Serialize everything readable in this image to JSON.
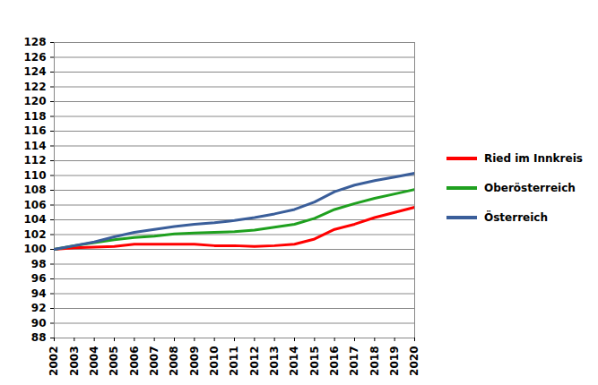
{
  "chart_data": {
    "type": "line",
    "x": [
      2002,
      2003,
      2004,
      2005,
      2006,
      2007,
      2008,
      2009,
      2010,
      2011,
      2012,
      2013,
      2014,
      2015,
      2016,
      2017,
      2018,
      2019,
      2020
    ],
    "series": [
      {
        "name": "Ried im Innkreis",
        "color": "#ff0000",
        "values": [
          100,
          100.2,
          100.3,
          100.4,
          100.7,
          100.7,
          100.7,
          100.7,
          100.5,
          100.5,
          100.4,
          100.5,
          100.7,
          101.4,
          102.7,
          103.4,
          104.3,
          105.0,
          105.7
        ]
      },
      {
        "name": "Oberösterreich",
        "color": "#1fa01f",
        "values": [
          100,
          100.5,
          100.9,
          101.3,
          101.6,
          101.8,
          102.1,
          102.2,
          102.3,
          102.4,
          102.6,
          103.0,
          103.4,
          104.2,
          105.4,
          106.2,
          106.9,
          107.5,
          108.1
        ]
      },
      {
        "name": "Österreich",
        "color": "#3a5e9a",
        "values": [
          100,
          100.5,
          101.0,
          101.7,
          102.3,
          102.7,
          103.1,
          103.4,
          103.6,
          103.9,
          104.3,
          104.8,
          105.4,
          106.4,
          107.8,
          108.7,
          109.3,
          109.8,
          110.3
        ]
      }
    ],
    "xlim": [
      2002,
      2020
    ],
    "xticks": [
      2002,
      2003,
      2004,
      2005,
      2006,
      2007,
      2008,
      2009,
      2010,
      2011,
      2012,
      2013,
      2014,
      2015,
      2016,
      2017,
      2018,
      2019,
      2020
    ],
    "ylim": [
      88,
      128
    ],
    "yticks": [
      88,
      90,
      92,
      94,
      96,
      98,
      100,
      102,
      104,
      106,
      108,
      110,
      112,
      114,
      116,
      118,
      120,
      122,
      124,
      126,
      128
    ],
    "grid": true,
    "legend": "right"
  }
}
